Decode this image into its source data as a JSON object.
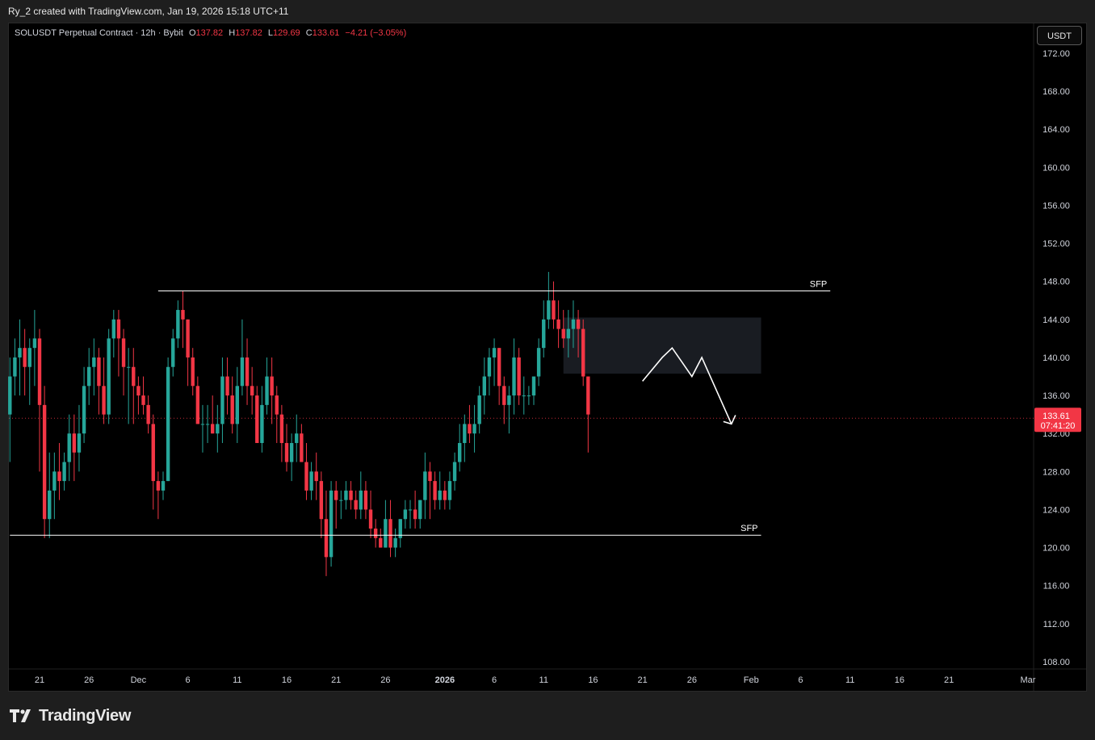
{
  "header": {
    "caption": "Ry_2 created with TradingView.com, Jan 19, 2026 15:18 UTC+11"
  },
  "legend": {
    "symbol": "SOLUSDT Perpetual Contract · 12h · Bybit",
    "o_label": "O",
    "o_value": "137.82",
    "h_label": "H",
    "h_value": "137.82",
    "l_label": "L",
    "l_value": "129.69",
    "c_label": "C",
    "c_value": "133.61",
    "change": "−4.21 (−3.05%)"
  },
  "currency_button": "USDT",
  "brand": {
    "name": "TradingView",
    "icon": "tradingview-logo-icon"
  },
  "colors": {
    "bull": "#26a69a",
    "bear": "#f23645",
    "background": "#000000",
    "axis_text": "#d1d4dc",
    "price_tag": "#f23645"
  },
  "chart_data": {
    "type": "candlestick",
    "title": "",
    "ylim": [
      106,
      177
    ],
    "grid": false,
    "y_ticks": [
      "172.00",
      "168.00",
      "164.00",
      "160.00",
      "156.00",
      "152.00",
      "148.00",
      "144.00",
      "140.00",
      "136.00",
      "132.00",
      "128.00",
      "124.00",
      "120.00",
      "116.00",
      "112.00",
      "108.00"
    ],
    "y_tick_values": [
      172,
      168,
      164,
      160,
      156,
      152,
      148,
      144,
      140,
      136,
      132,
      128,
      124,
      120,
      116,
      112,
      108
    ],
    "x_ticks": [
      "21",
      "26",
      "Dec",
      "6",
      "11",
      "16",
      "21",
      "26",
      "2026",
      "6",
      "11",
      "16",
      "21",
      "26",
      "Feb",
      "6",
      "11",
      "16",
      "21",
      "Mar"
    ],
    "x_tick_dates": [
      "2025-11-21",
      "2025-11-26",
      "2025-12-01",
      "2025-12-06",
      "2025-12-11",
      "2025-12-16",
      "2025-12-21",
      "2025-12-26",
      "2026-01-01",
      "2026-01-06",
      "2026-01-11",
      "2026-01-16",
      "2026-01-21",
      "2026-01-26",
      "2026-02-01",
      "2026-02-06",
      "2026-02-11",
      "2026-02-16",
      "2026-02-21",
      "2026-03-01"
    ],
    "first_candle": "2025-11-18 00:00",
    "interval_hours": 12,
    "candles": [
      [
        134,
        140,
        129,
        138
      ],
      [
        138,
        142,
        136,
        140
      ],
      [
        140,
        144,
        136,
        141
      ],
      [
        141,
        143,
        136,
        139
      ],
      [
        139,
        142,
        135,
        141
      ],
      [
        141,
        145,
        137,
        142
      ],
      [
        142,
        143,
        128,
        135
      ],
      [
        135,
        137,
        121,
        123
      ],
      [
        123,
        130,
        121,
        126
      ],
      [
        126,
        130,
        123,
        128
      ],
      [
        128,
        131,
        125,
        127
      ],
      [
        127,
        130,
        126,
        129
      ],
      [
        129,
        134,
        127,
        132
      ],
      [
        132,
        134,
        127,
        130
      ],
      [
        130,
        135,
        128,
        132
      ],
      [
        132,
        139,
        131,
        137
      ],
      [
        137,
        141,
        135,
        139
      ],
      [
        139,
        142,
        136,
        140
      ],
      [
        140,
        141,
        134,
        137
      ],
      [
        137,
        140,
        133,
        134
      ],
      [
        134,
        143,
        133,
        142
      ],
      [
        142,
        145,
        140,
        144
      ],
      [
        144,
        145,
        138,
        142
      ],
      [
        142,
        143,
        136,
        139
      ],
      [
        139,
        141,
        133,
        139
      ],
      [
        139,
        141,
        133,
        137
      ],
      [
        137,
        138,
        134,
        136
      ],
      [
        136,
        138,
        134,
        135
      ],
      [
        135,
        136,
        132,
        133
      ],
      [
        133,
        134,
        124,
        127
      ],
      [
        127,
        128,
        123,
        126
      ],
      [
        126,
        128,
        125,
        127
      ],
      [
        127,
        140,
        127,
        139
      ],
      [
        139,
        143,
        138,
        142
      ],
      [
        142,
        146,
        141,
        145
      ],
      [
        145,
        147,
        141,
        144
      ],
      [
        144,
        144,
        137,
        140
      ],
      [
        140,
        141,
        136,
        137
      ],
      [
        137,
        138,
        133,
        133
      ],
      [
        133,
        135,
        130,
        133
      ],
      [
        133,
        135,
        131,
        133
      ],
      [
        133,
        136,
        132,
        132
      ],
      [
        132,
        135,
        130,
        133
      ],
      [
        133,
        140,
        131,
        138
      ],
      [
        138,
        140,
        134,
        136
      ],
      [
        136,
        138,
        132,
        133
      ],
      [
        133,
        139,
        131,
        137
      ],
      [
        137,
        144,
        136,
        140
      ],
      [
        140,
        142,
        135,
        137
      ],
      [
        137,
        139,
        134,
        136
      ],
      [
        136,
        137,
        131,
        131
      ],
      [
        131,
        137,
        130,
        135
      ],
      [
        135,
        140,
        134,
        138
      ],
      [
        138,
        140,
        133,
        136
      ],
      [
        136,
        137,
        131,
        134
      ],
      [
        134,
        135,
        129,
        131
      ],
      [
        131,
        133,
        128,
        129
      ],
      [
        129,
        132,
        127,
        131
      ],
      [
        131,
        134,
        129,
        132
      ],
      [
        132,
        133,
        129,
        129
      ],
      [
        129,
        131,
        125,
        126
      ],
      [
        126,
        129,
        125,
        128
      ],
      [
        128,
        130,
        125,
        127
      ],
      [
        127,
        128,
        121,
        123
      ],
      [
        123,
        126,
        117,
        119
      ],
      [
        119,
        127,
        118,
        126
      ],
      [
        126,
        127,
        122,
        125
      ],
      [
        125,
        126,
        123,
        125
      ],
      [
        125,
        127,
        124,
        126
      ],
      [
        126,
        127,
        124,
        125
      ],
      [
        125,
        126,
        123,
        124
      ],
      [
        124,
        128,
        123,
        126
      ],
      [
        126,
        127,
        123,
        124
      ],
      [
        124,
        126,
        121,
        122
      ],
      [
        122,
        123,
        120,
        121
      ],
      [
        121,
        122,
        120,
        120
      ],
      [
        120,
        125,
        120,
        123
      ],
      [
        123,
        125,
        119,
        120
      ],
      [
        120,
        122,
        119,
        121
      ],
      [
        121,
        123,
        120,
        123
      ],
      [
        123,
        125,
        122,
        124
      ],
      [
        124,
        125,
        122,
        124
      ],
      [
        124,
        126,
        122,
        123
      ],
      [
        123,
        125,
        122,
        125
      ],
      [
        125,
        130,
        123,
        128
      ],
      [
        128,
        129,
        123,
        127
      ],
      [
        127,
        128,
        124,
        125
      ],
      [
        125,
        128,
        124,
        126
      ],
      [
        126,
        127,
        124,
        125
      ],
      [
        125,
        128,
        124,
        127
      ],
      [
        127,
        130,
        126,
        129
      ],
      [
        129,
        133,
        128,
        131
      ],
      [
        131,
        134,
        129,
        133
      ],
      [
        133,
        135,
        131,
        132
      ],
      [
        132,
        135,
        130,
        133
      ],
      [
        133,
        137,
        132,
        136
      ],
      [
        136,
        140,
        134,
        138
      ],
      [
        138,
        141,
        136,
        140
      ],
      [
        140,
        142,
        137,
        141
      ],
      [
        141,
        141,
        135,
        137
      ],
      [
        137,
        138,
        133,
        135
      ],
      [
        135,
        137,
        132,
        136
      ],
      [
        136,
        142,
        134,
        140
      ],
      [
        140,
        141,
        135,
        136
      ],
      [
        136,
        138,
        134,
        136
      ],
      [
        136,
        137,
        135,
        136
      ],
      [
        136,
        138,
        135,
        138
      ],
      [
        138,
        142,
        137,
        141
      ],
      [
        141,
        146,
        140,
        144
      ],
      [
        144,
        149,
        143,
        146
      ],
      [
        146,
        148,
        143,
        144
      ],
      [
        144,
        146,
        141,
        143
      ],
      [
        143,
        145,
        141,
        142
      ],
      [
        142,
        145,
        140,
        143
      ],
      [
        143,
        146,
        141,
        144
      ],
      [
        144,
        145,
        140,
        143
      ],
      [
        143,
        144,
        137,
        138
      ],
      [
        138,
        138,
        130,
        134
      ]
    ],
    "last_price": "133.61",
    "countdown": "07:41:20",
    "annotations": [
      {
        "kind": "horizontal",
        "label": "SFP",
        "price": 147.0,
        "from": "2025-12-03",
        "to": "2026-02-09"
      },
      {
        "kind": "horizontal",
        "label": "SFP",
        "price": 121.3,
        "from": "2025-11-18",
        "to": "2026-02-02"
      },
      {
        "kind": "zone",
        "price_low": 138.3,
        "price_high": 144.2,
        "from": "2026-01-13",
        "to": "2026-02-02"
      },
      {
        "kind": "path",
        "points": [
          [
            "2026-01-21",
            137.5
          ],
          [
            "2026-01-23",
            140.0
          ],
          [
            "2026-01-24",
            141.0
          ],
          [
            "2026-01-25",
            139.5
          ],
          [
            "2026-01-26",
            138.0
          ],
          [
            "2026-01-27",
            140.0
          ],
          [
            "2026-01-30",
            133.0
          ]
        ]
      }
    ]
  }
}
